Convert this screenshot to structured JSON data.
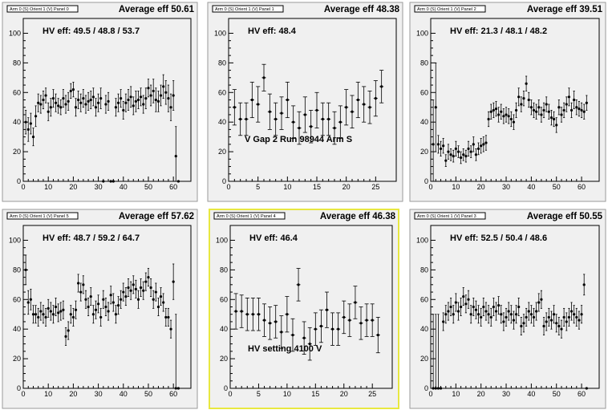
{
  "chart_data": [
    {
      "type": "scatter",
      "title": "Arm 0 (S) Orient 1 (V) Panel 0",
      "average_label": "Average eff 50.61",
      "hv_label": "HV eff:   49.5 / 48.8 / 53.7",
      "note": "",
      "selected": false,
      "xlim": [
        0,
        67
      ],
      "ylim": [
        0,
        110
      ],
      "xticks": [
        0,
        10,
        20,
        30,
        40,
        50,
        60
      ],
      "yticks": [
        0,
        20,
        40,
        60,
        80,
        100
      ],
      "x": [
        1,
        2,
        3,
        4,
        5,
        6,
        7,
        8,
        9,
        10,
        11,
        12,
        13,
        14,
        15,
        16,
        17,
        18,
        19,
        20,
        21,
        22,
        23,
        24,
        25,
        26,
        27,
        28,
        29,
        30,
        31,
        32,
        33,
        34,
        35,
        36,
        37,
        38,
        39,
        40,
        41,
        42,
        43,
        44,
        45,
        46,
        47,
        48,
        49,
        50,
        51,
        52,
        53,
        54,
        55,
        56,
        57,
        58,
        59,
        60,
        61,
        62
      ],
      "y": [
        40,
        35,
        39,
        30,
        44,
        53,
        52,
        55,
        58,
        47,
        50,
        56,
        53,
        51,
        50,
        56,
        52,
        54,
        61,
        62,
        50,
        55,
        53,
        56,
        52,
        54,
        55,
        57,
        50,
        53,
        56,
        0,
        52,
        54,
        0,
        0,
        50,
        53,
        56,
        48,
        53,
        55,
        57,
        51,
        54,
        55,
        57,
        52,
        56,
        63,
        58,
        61,
        55,
        54,
        58,
        64,
        60,
        56,
        50,
        58,
        17,
        0
      ],
      "err": [
        8,
        8,
        7,
        6,
        7,
        6,
        6,
        6,
        5,
        6,
        6,
        6,
        6,
        5,
        5,
        6,
        6,
        6,
        5,
        5,
        6,
        6,
        6,
        6,
        6,
        6,
        6,
        6,
        6,
        6,
        7,
        0,
        6,
        6,
        0,
        0,
        6,
        6,
        6,
        6,
        6,
        7,
        7,
        6,
        7,
        6,
        6,
        6,
        7,
        6,
        7,
        8,
        8,
        7,
        7,
        8,
        8,
        9,
        9,
        10,
        20,
        0
      ]
    },
    {
      "type": "scatter",
      "title": "Arm 0 (S) Orient 1 (V) Panel 1",
      "average_label": "Average eff 48.38",
      "hv_label": "HV eff:   48.4",
      "note": "V Gap 2 Run 98944 Arm S",
      "selected": false,
      "xlim": [
        0,
        28.5
      ],
      "ylim": [
        0,
        110
      ],
      "xticks": [
        0,
        5,
        10,
        15,
        20,
        25
      ],
      "yticks": [
        0,
        20,
        40,
        60,
        80,
        100
      ],
      "x": [
        1,
        2,
        3,
        4,
        5,
        6,
        7,
        8,
        9,
        10,
        11,
        12,
        13,
        14,
        15,
        16,
        17,
        18,
        19,
        20,
        21,
        22,
        23,
        24,
        25,
        26
      ],
      "y": [
        50,
        42,
        42,
        55,
        52,
        70,
        47,
        42,
        46,
        55,
        40,
        36,
        45,
        37,
        48,
        42,
        42,
        36,
        40,
        50,
        47,
        55,
        52,
        50,
        56,
        64
      ],
      "err": [
        12,
        11,
        11,
        12,
        12,
        9,
        12,
        11,
        11,
        12,
        11,
        11,
        12,
        11,
        12,
        11,
        11,
        11,
        11,
        12,
        11,
        12,
        12,
        11,
        12,
        11
      ]
    },
    {
      "type": "scatter",
      "title": "Arm 0 (S) Orient 1 (V) Panel 2",
      "average_label": "Average eff 39.51",
      "hv_label": "HV eff:   21.3 / 48.1 / 48.2",
      "note": "",
      "selected": false,
      "xlim": [
        0,
        67
      ],
      "ylim": [
        0,
        110
      ],
      "xticks": [
        0,
        10,
        20,
        30,
        40,
        50,
        60
      ],
      "yticks": [
        0,
        20,
        40,
        60,
        80,
        100
      ],
      "x": [
        1,
        2,
        3,
        4,
        5,
        6,
        7,
        8,
        9,
        10,
        11,
        12,
        13,
        14,
        15,
        16,
        17,
        18,
        19,
        20,
        21,
        22,
        23,
        24,
        25,
        26,
        27,
        28,
        29,
        30,
        31,
        32,
        33,
        34,
        35,
        36,
        37,
        38,
        39,
        40,
        41,
        42,
        43,
        44,
        45,
        46,
        47,
        48,
        49,
        50,
        51,
        52,
        53,
        54,
        55,
        56,
        57,
        58,
        59,
        60,
        61,
        62
      ],
      "y": [
        25,
        50,
        25,
        22,
        24,
        14,
        20,
        18,
        17,
        22,
        20,
        16,
        18,
        17,
        22,
        20,
        25,
        18,
        22,
        24,
        25,
        26,
        42,
        47,
        48,
        49,
        45,
        47,
        44,
        45,
        44,
        42,
        40,
        48,
        57,
        52,
        56,
        66,
        55,
        50,
        48,
        47,
        50,
        45,
        48,
        52,
        47,
        43,
        42,
        38,
        50,
        45,
        48,
        52,
        57,
        48,
        55,
        50,
        49,
        48,
        47,
        53
      ],
      "err": [
        30,
        30,
        6,
        5,
        5,
        4,
        5,
        4,
        4,
        5,
        4,
        4,
        4,
        4,
        5,
        4,
        5,
        4,
        4,
        5,
        5,
        5,
        5,
        5,
        5,
        5,
        5,
        5,
        5,
        5,
        5,
        5,
        5,
        5,
        6,
        5,
        5,
        5,
        5,
        5,
        5,
        5,
        5,
        5,
        5,
        5,
        5,
        5,
        5,
        5,
        5,
        5,
        5,
        5,
        6,
        5,
        6,
        5,
        5,
        5,
        5,
        5
      ]
    },
    {
      "type": "scatter",
      "title": "Arm 0 (S) Orient 1 (V) Panel 5",
      "average_label": "Average eff 57.62",
      "hv_label": "HV eff:   48.7 / 59.2 / 64.7",
      "note": "",
      "selected": false,
      "xlim": [
        0,
        67
      ],
      "ylim": [
        0,
        110
      ],
      "xticks": [
        0,
        10,
        20,
        30,
        40,
        50,
        60
      ],
      "yticks": [
        0,
        20,
        40,
        60,
        80,
        100
      ],
      "x": [
        1,
        2,
        3,
        4,
        5,
        6,
        7,
        8,
        9,
        10,
        11,
        12,
        13,
        14,
        15,
        16,
        17,
        18,
        19,
        20,
        21,
        22,
        23,
        24,
        25,
        26,
        27,
        28,
        29,
        30,
        31,
        32,
        33,
        34,
        35,
        36,
        37,
        38,
        39,
        40,
        41,
        42,
        43,
        44,
        45,
        46,
        47,
        48,
        49,
        50,
        51,
        52,
        53,
        54,
        55,
        56,
        57,
        58,
        59,
        60,
        61,
        62
      ],
      "y": [
        80,
        58,
        60,
        50,
        50,
        48,
        52,
        50,
        48,
        54,
        52,
        50,
        55,
        51,
        52,
        53,
        35,
        39,
        50,
        48,
        53,
        71,
        65,
        70,
        60,
        55,
        62,
        50,
        53,
        57,
        48,
        60,
        55,
        52,
        63,
        58,
        50,
        56,
        60,
        65,
        62,
        68,
        66,
        70,
        67,
        60,
        68,
        66,
        72,
        75,
        68,
        60,
        65,
        55,
        62,
        58,
        48,
        48,
        40,
        72,
        0,
        0
      ],
      "err": [
        10,
        8,
        7,
        6,
        6,
        6,
        6,
        6,
        6,
        6,
        6,
        6,
        6,
        6,
        6,
        6,
        6,
        6,
        6,
        6,
        6,
        6,
        6,
        6,
        6,
        6,
        6,
        6,
        6,
        6,
        6,
        6,
        6,
        6,
        6,
        6,
        6,
        6,
        6,
        6,
        6,
        6,
        6,
        6,
        6,
        6,
        6,
        6,
        6,
        6,
        6,
        6,
        6,
        6,
        6,
        6,
        6,
        6,
        6,
        12,
        50,
        0
      ]
    },
    {
      "type": "scatter",
      "title": "Arm 0 (S) Orient 1 (V) Panel 4",
      "average_label": "Average eff 46.38",
      "hv_label": "HV eff:   46.4",
      "note": "HV setting 4100 V",
      "selected": true,
      "xlim": [
        0,
        28.5
      ],
      "ylim": [
        0,
        110
      ],
      "xticks": [
        0,
        5,
        10,
        15,
        20,
        25
      ],
      "yticks": [
        0,
        20,
        40,
        60,
        80,
        100
      ],
      "x": [
        1,
        2,
        3,
        4,
        5,
        6,
        7,
        8,
        9,
        10,
        11,
        12,
        13,
        14,
        15,
        16,
        17,
        18,
        19,
        20,
        21,
        22,
        23,
        24,
        25,
        26
      ],
      "y": [
        52,
        52,
        50,
        50,
        50,
        46,
        44,
        45,
        38,
        50,
        36,
        70,
        34,
        30,
        40,
        42,
        53,
        40,
        40,
        48,
        46,
        58,
        44,
        46,
        46,
        36
      ],
      "err": [
        12,
        11,
        11,
        11,
        11,
        11,
        11,
        11,
        11,
        12,
        11,
        11,
        11,
        11,
        11,
        11,
        12,
        11,
        11,
        11,
        11,
        11,
        11,
        11,
        11,
        12
      ]
    },
    {
      "type": "scatter",
      "title": "Arm 0 (S) Orient 1 (V) Panel 3",
      "average_label": "Average eff 50.55",
      "hv_label": "HV eff:   52.5 / 50.4 / 48.6",
      "note": "",
      "selected": false,
      "xlim": [
        0,
        67
      ],
      "ylim": [
        0,
        110
      ],
      "xticks": [
        0,
        10,
        20,
        30,
        40,
        50,
        60
      ],
      "yticks": [
        0,
        20,
        40,
        60,
        80,
        100
      ],
      "x": [
        1,
        2,
        3,
        4,
        5,
        6,
        7,
        8,
        9,
        10,
        11,
        12,
        13,
        14,
        15,
        16,
        17,
        18,
        19,
        20,
        21,
        22,
        23,
        24,
        25,
        26,
        27,
        28,
        29,
        30,
        31,
        32,
        33,
        34,
        35,
        36,
        37,
        38,
        39,
        40,
        41,
        42,
        43,
        44,
        45,
        46,
        47,
        48,
        49,
        50,
        51,
        52,
        53,
        54,
        55,
        56,
        57,
        58,
        59,
        60,
        61,
        62
      ],
      "y": [
        0,
        0,
        0,
        0,
        45,
        50,
        52,
        55,
        50,
        58,
        52,
        55,
        62,
        57,
        60,
        50,
        55,
        53,
        50,
        48,
        55,
        52,
        50,
        48,
        55,
        52,
        56,
        50,
        45,
        48,
        52,
        50,
        46,
        50,
        55,
        42,
        44,
        48,
        52,
        50,
        48,
        52,
        58,
        60,
        42,
        45,
        48,
        46,
        50,
        44,
        42,
        40,
        48,
        45,
        48,
        52,
        50,
        48,
        46,
        50,
        70,
        0
      ],
      "err": [
        50,
        50,
        50,
        0,
        6,
        6,
        6,
        6,
        6,
        6,
        6,
        6,
        6,
        6,
        6,
        6,
        6,
        6,
        6,
        6,
        6,
        6,
        6,
        6,
        6,
        6,
        6,
        6,
        6,
        6,
        6,
        6,
        6,
        6,
        6,
        6,
        6,
        6,
        6,
        6,
        6,
        6,
        6,
        6,
        6,
        6,
        6,
        6,
        6,
        6,
        6,
        6,
        6,
        6,
        6,
        6,
        6,
        6,
        6,
        6,
        7,
        0
      ]
    }
  ]
}
